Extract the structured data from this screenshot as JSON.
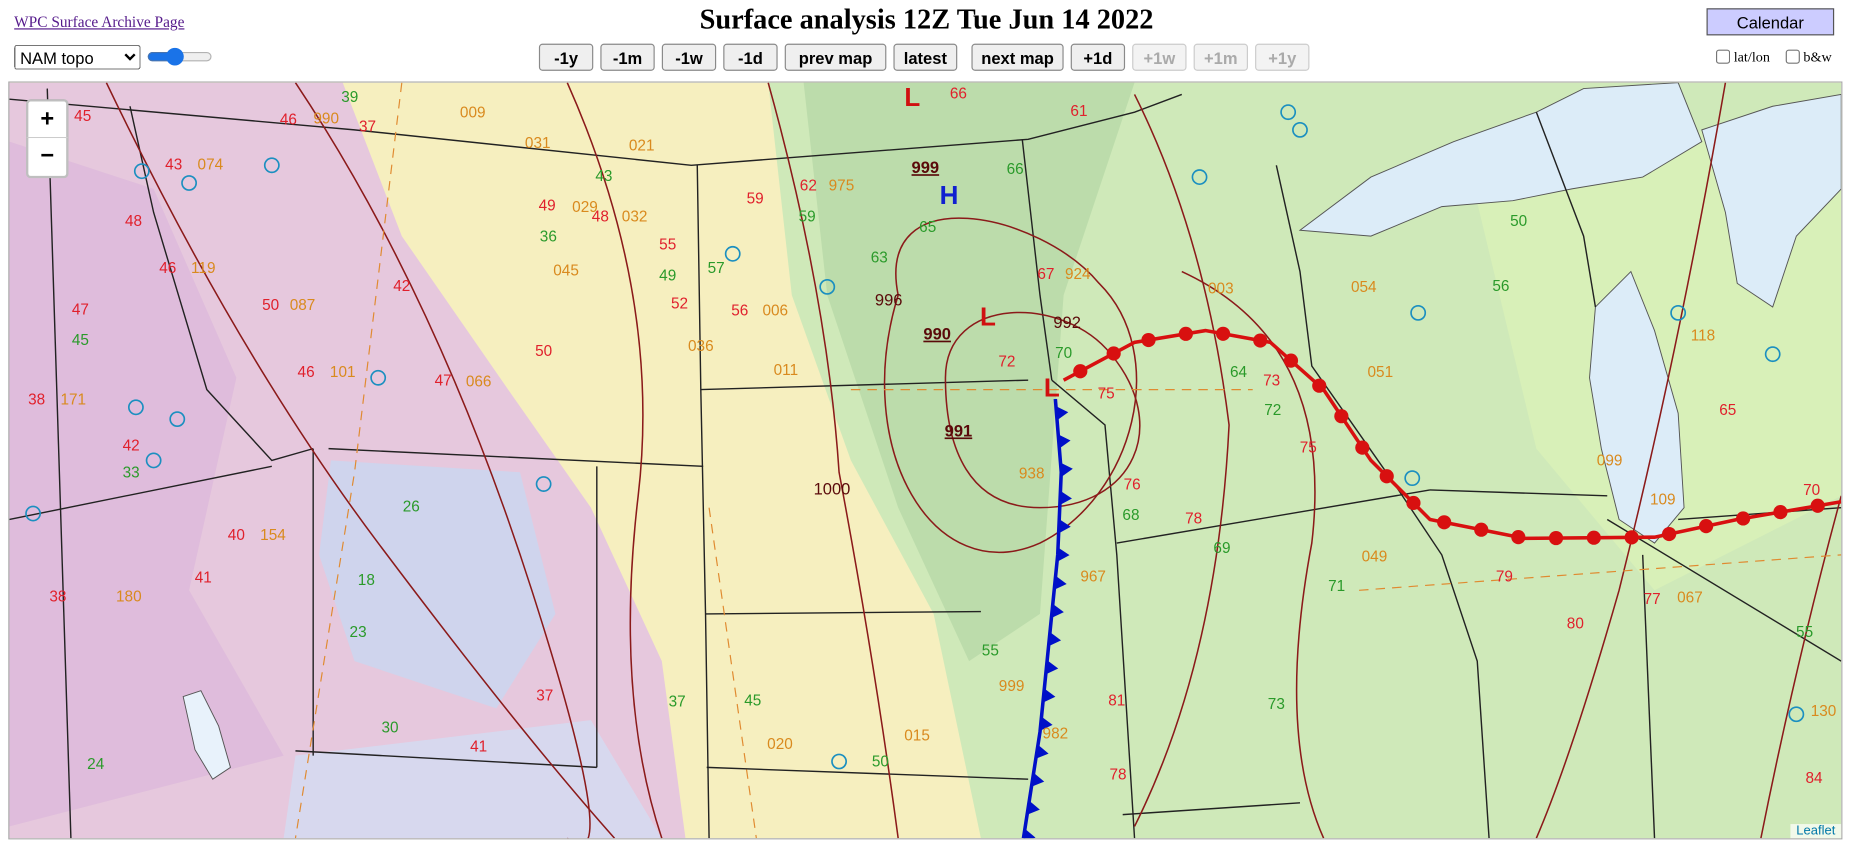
{
  "header": {
    "archive_link": "WPC Surface Archive Page",
    "title": "Surface analysis 12Z Tue Jun 14 2022",
    "calendar": "Calendar"
  },
  "controls": {
    "map_type": "NAM topo",
    "nav_buttons": [
      "-1y",
      "-1m",
      "-1w",
      "-1d",
      "prev map",
      "latest",
      "next map",
      "+1d",
      "+1w",
      "+1m",
      "+1y"
    ],
    "nav_enabled": [
      true,
      true,
      true,
      true,
      true,
      true,
      true,
      true,
      false,
      false,
      false
    ],
    "checkboxes": [
      "lat/lon",
      "b&w"
    ]
  },
  "map": {
    "zoom_in": "+",
    "zoom_out": "−",
    "attribution": "Leaflet",
    "centers": [
      "L",
      "H",
      "L",
      "L"
    ],
    "isobar_labels": [
      "999",
      "996",
      "990",
      "991",
      "992",
      "1000"
    ],
    "temperatures": [
      "45",
      "46",
      "37",
      "43",
      "48",
      "46",
      "47",
      "50",
      "42",
      "46",
      "47",
      "38",
      "42",
      "40",
      "41",
      "38",
      "59",
      "49",
      "48",
      "55",
      "52",
      "56",
      "50",
      "62",
      "66",
      "61",
      "67",
      "72",
      "75",
      "76",
      "78",
      "73",
      "75",
      "79",
      "80",
      "77",
      "65",
      "70",
      "84",
      "81",
      "78",
      "41",
      "37"
    ],
    "dewpoints": [
      "39",
      "43",
      "36",
      "49",
      "57",
      "59",
      "63",
      "65",
      "66",
      "70",
      "64",
      "72",
      "69",
      "71",
      "50",
      "56",
      "55",
      "45",
      "33",
      "26",
      "18",
      "23",
      "30",
      "24",
      "37",
      "45",
      "50",
      "55",
      "68",
      "73"
    ],
    "pressures": [
      "990",
      "009",
      "031",
      "021",
      "074",
      "119",
      "087",
      "101",
      "066",
      "171",
      "154",
      "180",
      "029",
      "032",
      "045",
      "006",
      "011",
      "036",
      "975",
      "924",
      "003",
      "054",
      "051",
      "118",
      "099",
      "109",
      "130",
      "067",
      "049",
      "020",
      "015",
      "999",
      "982",
      "938",
      "967"
    ]
  }
}
